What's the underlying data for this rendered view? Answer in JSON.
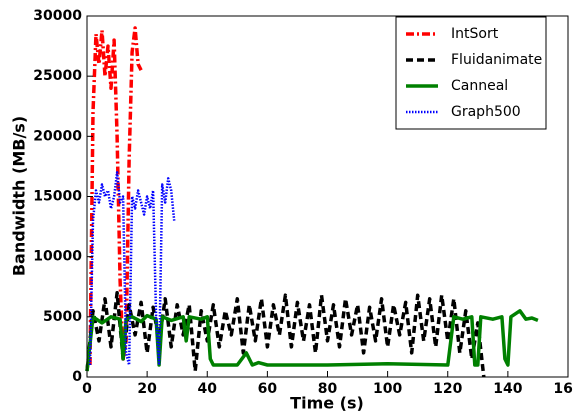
{
  "chart_data": {
    "type": "line",
    "x_label": "Time (s)",
    "y_label": "Bandwidth (MB/s)",
    "xlim": [
      0,
      160
    ],
    "xticks": [
      0,
      20,
      40,
      60,
      80,
      100,
      120,
      140,
      160
    ],
    "ylim": [
      0,
      30000
    ],
    "yticks": [
      0,
      5000,
      10000,
      15000,
      20000,
      25000,
      30000
    ],
    "grid": false,
    "legend": "upper right",
    "series": [
      {
        "name": "IntSort",
        "color": "#ff0000",
        "style": "dashdot",
        "x": [
          1,
          2,
          3,
          4,
          5,
          6,
          7,
          8,
          9,
          10,
          11,
          12,
          13,
          14,
          15,
          16,
          17,
          18
        ],
        "values": [
          1000,
          22000,
          28500,
          26000,
          28800,
          25000,
          27500,
          24000,
          28000,
          20000,
          8000,
          1500,
          3000,
          18000,
          27000,
          29000,
          26000,
          25500
        ]
      },
      {
        "name": "Fluidanimate",
        "color": "#000000",
        "style": "dashed",
        "x": [
          0,
          2,
          4,
          6,
          8,
          10,
          12,
          14,
          16,
          18,
          20,
          22,
          24,
          26,
          28,
          30,
          32,
          34,
          36,
          38,
          40,
          42,
          44,
          46,
          48,
          50,
          52,
          54,
          56,
          58,
          60,
          62,
          64,
          66,
          68,
          70,
          72,
          74,
          76,
          78,
          80,
          82,
          84,
          86,
          88,
          90,
          92,
          94,
          96,
          98,
          100,
          102,
          104,
          106,
          108,
          110,
          112,
          114,
          116,
          118,
          120,
          122,
          124,
          126,
          128,
          130,
          132
        ],
        "values": [
          500,
          5500,
          3000,
          6500,
          2500,
          7000,
          1500,
          6000,
          3500,
          6200,
          2000,
          5800,
          3000,
          6500,
          2500,
          6000,
          3500,
          6000,
          500,
          5500,
          3000,
          6000,
          2500,
          5500,
          3500,
          6500,
          2000,
          6000,
          3000,
          6500,
          2500,
          6000,
          3500,
          6800,
          2500,
          6200,
          3000,
          6000,
          2000,
          6800,
          3000,
          6000,
          2500,
          6500,
          3500,
          6000,
          2000,
          5800,
          3000,
          6500,
          2500,
          6000,
          3500,
          6200,
          2000,
          6800,
          3000,
          6500,
          2500,
          6800,
          3000,
          6500,
          2000,
          5500,
          1500,
          4500,
          0
        ]
      },
      {
        "name": "Canneal",
        "color": "#008000",
        "style": "solid",
        "x": [
          0,
          2,
          5,
          8,
          11,
          12,
          13,
          15,
          18,
          20,
          23,
          24,
          25,
          28,
          32,
          33,
          34,
          38,
          40,
          41,
          42,
          50,
          53,
          55,
          57,
          60,
          80,
          100,
          120,
          121,
          122,
          125,
          128,
          129,
          130,
          131,
          135,
          138,
          139,
          140,
          141,
          144,
          146,
          148,
          150
        ],
        "values": [
          500,
          5000,
          4500,
          5000,
          4800,
          1500,
          4800,
          5000,
          4600,
          5100,
          4800,
          1000,
          5000,
          4700,
          5000,
          3000,
          5000,
          4800,
          5000,
          1500,
          1000,
          1000,
          2000,
          1000,
          1200,
          1000,
          1000,
          1100,
          1000,
          3000,
          5000,
          4800,
          5000,
          1000,
          1000,
          5000,
          4800,
          5000,
          1500,
          1000,
          5000,
          5500,
          4800,
          4900,
          4700
        ]
      },
      {
        "name": "Graph500",
        "color": "#0000ff",
        "style": "dotted",
        "x": [
          1,
          2,
          3,
          4,
          5,
          6,
          7,
          8,
          9,
          10,
          11,
          12,
          13,
          14,
          15,
          16,
          17,
          18,
          19,
          20,
          21,
          22,
          23,
          24,
          25,
          26,
          27,
          28,
          29
        ],
        "values": [
          1000,
          13000,
          15500,
          14500,
          16000,
          15000,
          15500,
          14000,
          15000,
          17000,
          14500,
          15000,
          2000,
          1000,
          15000,
          14000,
          15500,
          14500,
          13500,
          15000,
          14000,
          15500,
          5000,
          1000,
          16000,
          14500,
          16500,
          15500,
          13000
        ]
      }
    ]
  }
}
